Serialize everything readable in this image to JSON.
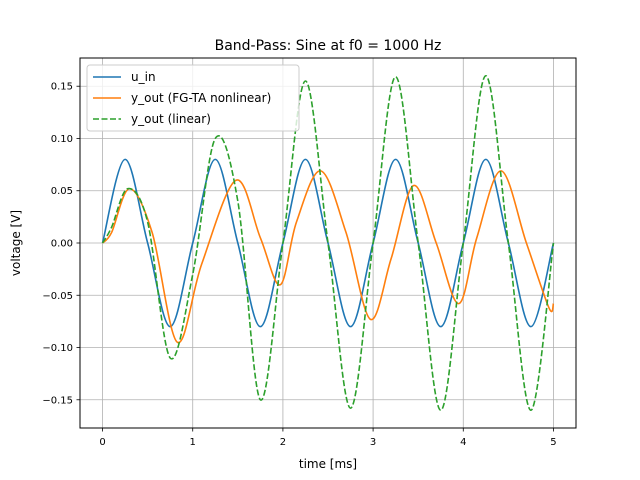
{
  "chart_data": {
    "type": "line",
    "title": "Band-Pass: Sine at f0 = 1000 Hz",
    "xlabel": "time [ms]",
    "ylabel": "voltage [V]",
    "xlim": [
      -0.25,
      5.25
    ],
    "ylim": [
      -0.177,
      0.177
    ],
    "xticks": [
      0,
      1,
      2,
      3,
      4,
      5
    ],
    "xtick_labels": [
      "0",
      "1",
      "2",
      "3",
      "4",
      "5"
    ],
    "yticks": [
      -0.15,
      -0.1,
      -0.05,
      0.0,
      0.05,
      0.1,
      0.15
    ],
    "ytick_labels": [
      "−0.15",
      "−0.10",
      "−0.05",
      "0.00",
      "0.05",
      "0.10",
      "0.15"
    ],
    "grid": true,
    "legend_position": "upper-left",
    "series": [
      {
        "name": "u_in",
        "color": "#1f77b4",
        "style": "solid",
        "points": [
          [
            0,
            0
          ],
          [
            0.25,
            0.08
          ],
          [
            0.5,
            0
          ],
          [
            0.75,
            -0.08
          ],
          [
            1.0,
            0
          ],
          [
            1.25,
            0.08
          ],
          [
            1.5,
            0
          ],
          [
            1.75,
            -0.08
          ],
          [
            2.0,
            0
          ],
          [
            2.25,
            0.08
          ],
          [
            2.5,
            0
          ],
          [
            2.75,
            -0.08
          ],
          [
            3.0,
            0
          ],
          [
            3.25,
            0.08
          ],
          [
            3.5,
            0
          ],
          [
            3.75,
            -0.08
          ],
          [
            4.0,
            0
          ],
          [
            4.25,
            0.08
          ],
          [
            4.5,
            0
          ],
          [
            4.75,
            -0.08
          ],
          [
            5.0,
            0
          ]
        ]
      },
      {
        "name": "y_out (FG-TA nonlinear)",
        "color": "#ff7f0e",
        "style": "solid",
        "points": [
          [
            0,
            0
          ],
          [
            0.1,
            0.01
          ],
          [
            0.3,
            0.052
          ],
          [
            0.55,
            0.01
          ],
          [
            0.83,
            -0.095
          ],
          [
            1.1,
            -0.02
          ],
          [
            1.48,
            0.06
          ],
          [
            1.75,
            0.005
          ],
          [
            1.97,
            -0.04
          ],
          [
            2.15,
            0.02
          ],
          [
            2.42,
            0.069
          ],
          [
            2.7,
            0.01
          ],
          [
            2.97,
            -0.073
          ],
          [
            3.2,
            -0.015
          ],
          [
            3.45,
            0.055
          ],
          [
            3.7,
            0.0
          ],
          [
            3.95,
            -0.058
          ],
          [
            4.15,
            0.005
          ],
          [
            4.42,
            0.069
          ],
          [
            4.7,
            0.0
          ],
          [
            4.95,
            -0.062
          ],
          [
            5.0,
            -0.058
          ]
        ]
      },
      {
        "name": "y_out (linear)",
        "color": "#2ca02c",
        "style": "dashed",
        "points": [
          [
            0,
            0
          ],
          [
            0.1,
            0.015
          ],
          [
            0.28,
            0.052
          ],
          [
            0.5,
            0.02
          ],
          [
            0.75,
            -0.11
          ],
          [
            1.0,
            -0.03
          ],
          [
            1.25,
            0.1
          ],
          [
            1.5,
            0.04
          ],
          [
            1.75,
            -0.15
          ],
          [
            2.0,
            0.0
          ],
          [
            2.25,
            0.155
          ],
          [
            2.5,
            0.0
          ],
          [
            2.75,
            -0.158
          ],
          [
            3.0,
            0.0
          ],
          [
            3.25,
            0.159
          ],
          [
            3.5,
            0.0
          ],
          [
            3.75,
            -0.16
          ],
          [
            4.0,
            0.0
          ],
          [
            4.25,
            0.16
          ],
          [
            4.5,
            0.0
          ],
          [
            4.75,
            -0.16
          ],
          [
            5.0,
            0.0
          ]
        ]
      }
    ]
  }
}
